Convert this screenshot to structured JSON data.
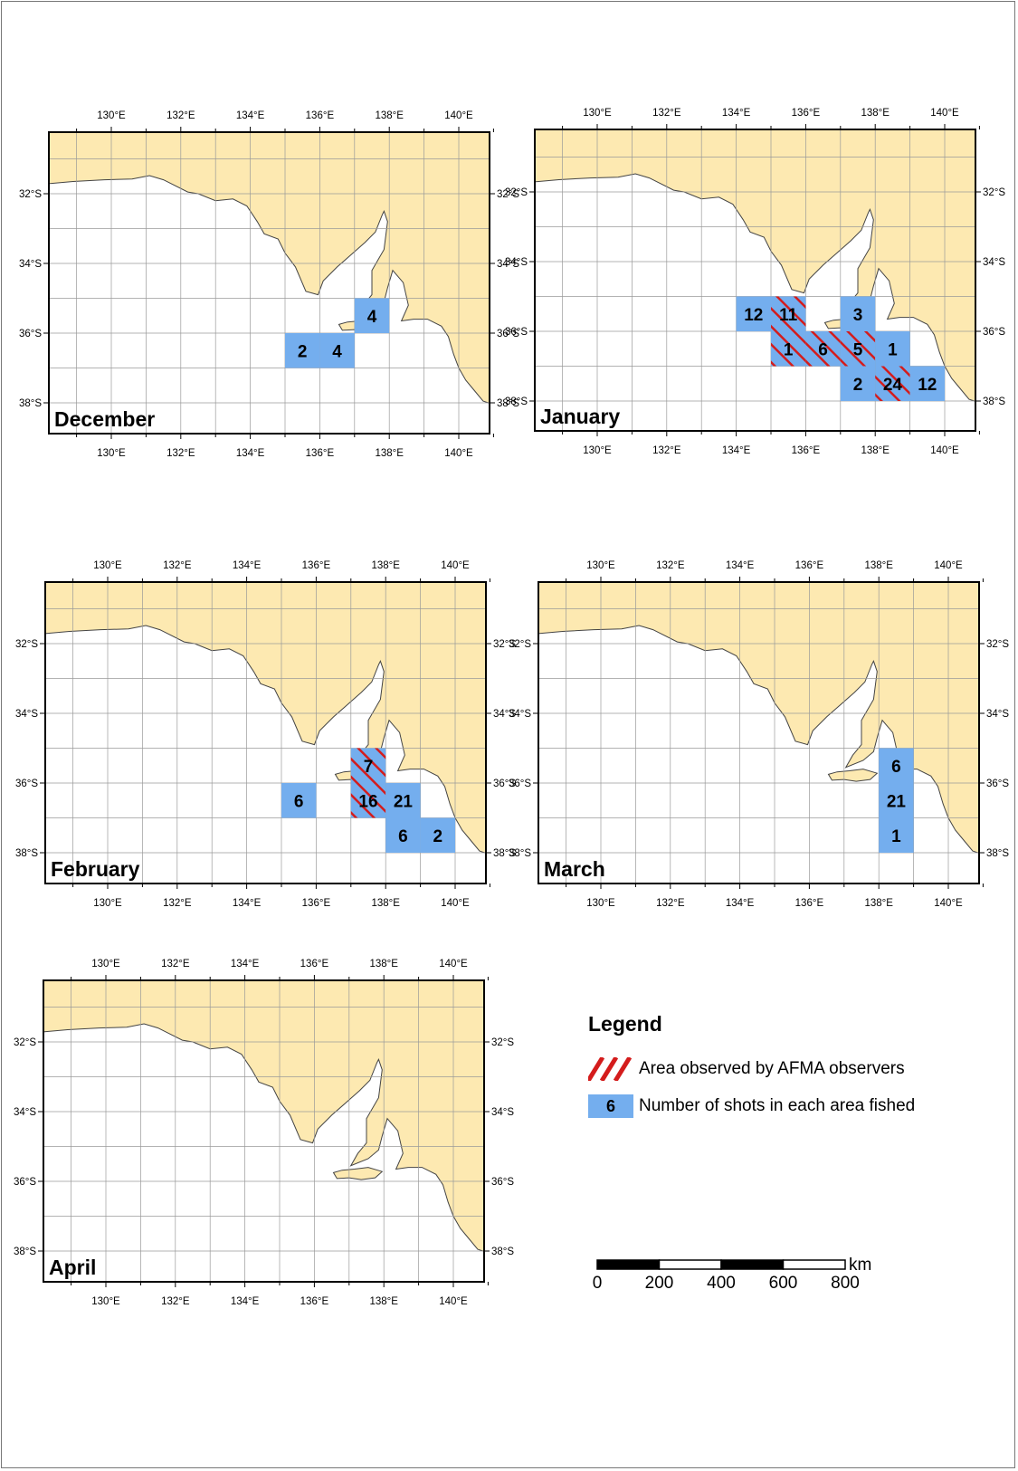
{
  "colors": {
    "land": "#fde9b1",
    "sea": "#ffffff",
    "coast": "#444444",
    "grid": "#9a9a9a",
    "shot_fill": "#74aeee",
    "observed_hatch": "#d41c1c"
  },
  "axis_ticks": {
    "longitudes": [
      "130°E",
      "132°E",
      "134°E",
      "136°E",
      "138°E",
      "140°E"
    ],
    "latitudes": [
      "32°S",
      "34°S",
      "36°S",
      "38°S"
    ]
  },
  "maps": [
    {
      "month": "December",
      "cells": [
        {
          "lon_min": 137,
          "lat_min": -36,
          "shots": "4",
          "observed": false
        },
        {
          "lon_min": 135,
          "lat_min": -37,
          "shots": "2",
          "observed": false
        },
        {
          "lon_min": 136,
          "lat_min": -37,
          "shots": "4",
          "observed": false
        }
      ]
    },
    {
      "month": "January",
      "cells": [
        {
          "lon_min": 134,
          "lat_min": -36,
          "shots": "12",
          "observed": false
        },
        {
          "lon_min": 135,
          "lat_min": -36,
          "shots": "11",
          "observed": true
        },
        {
          "lon_min": 137,
          "lat_min": -36,
          "shots": "3",
          "observed": false
        },
        {
          "lon_min": 135,
          "lat_min": -37,
          "shots": "1",
          "observed": true
        },
        {
          "lon_min": 136,
          "lat_min": -37,
          "shots": "6",
          "observed": true
        },
        {
          "lon_min": 137,
          "lat_min": -37,
          "shots": "5",
          "observed": true
        },
        {
          "lon_min": 138,
          "lat_min": -37,
          "shots": "1",
          "observed": false
        },
        {
          "lon_min": 137,
          "lat_min": -38,
          "shots": "2",
          "observed": false
        },
        {
          "lon_min": 138,
          "lat_min": -38,
          "shots": "24",
          "observed": true
        },
        {
          "lon_min": 139,
          "lat_min": -38,
          "shots": "12",
          "observed": false
        }
      ]
    },
    {
      "month": "February",
      "cells": [
        {
          "lon_min": 137,
          "lat_min": -36,
          "shots": "7",
          "observed": true
        },
        {
          "lon_min": 135,
          "lat_min": -37,
          "shots": "6",
          "observed": false
        },
        {
          "lon_min": 137,
          "lat_min": -37,
          "shots": "16",
          "observed": true
        },
        {
          "lon_min": 138,
          "lat_min": -37,
          "shots": "21",
          "observed": false
        },
        {
          "lon_min": 138,
          "lat_min": -38,
          "shots": "6",
          "observed": false
        },
        {
          "lon_min": 139,
          "lat_min": -38,
          "shots": "2",
          "observed": false
        }
      ]
    },
    {
      "month": "March",
      "cells": [
        {
          "lon_min": 138,
          "lat_min": -36,
          "shots": "6",
          "observed": false
        },
        {
          "lon_min": 138,
          "lat_min": -37,
          "shots": "21",
          "observed": false
        },
        {
          "lon_min": 138,
          "lat_min": -38,
          "shots": "1",
          "observed": false
        }
      ]
    },
    {
      "month": "April",
      "cells": []
    }
  ],
  "legend": {
    "title": "Legend",
    "observed_label": "Area observed by AFMA observers",
    "shots_sample": "6",
    "shots_label": "Number of shots in each area fished"
  },
  "scale_bar": {
    "unit": "km",
    "labels": [
      "0",
      "200",
      "400",
      "600",
      "800"
    ]
  }
}
